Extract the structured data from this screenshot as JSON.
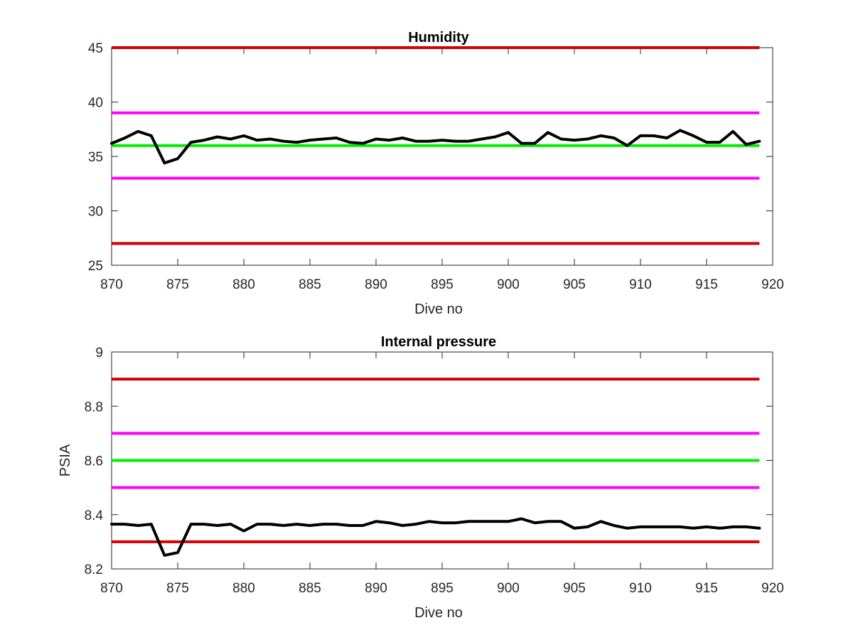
{
  "colors": {
    "red_limit": "#d40000",
    "magenta_limit": "#ff00ff",
    "green_nominal": "#00ee00",
    "data_line": "#000000",
    "axis": "#262626"
  },
  "chart_data": [
    {
      "type": "line",
      "title": "Humidity",
      "xlabel": "Dive no",
      "ylabel": "",
      "xlim": [
        870,
        920
      ],
      "ylim": [
        25,
        45
      ],
      "xticks": [
        870,
        875,
        880,
        885,
        890,
        895,
        900,
        905,
        910,
        915,
        920
      ],
      "yticks": [
        25,
        30,
        35,
        40,
        45
      ],
      "grid": false,
      "reference_lines": [
        {
          "y": 45,
          "color": "red"
        },
        {
          "y": 39,
          "color": "magenta"
        },
        {
          "y": 36,
          "color": "green"
        },
        {
          "y": 33,
          "color": "magenta"
        },
        {
          "y": 27,
          "color": "red"
        }
      ],
      "series": [
        {
          "x": [
            870,
            871,
            872,
            873,
            874,
            875,
            876,
            877,
            878,
            879,
            880,
            881,
            882,
            883,
            884,
            885,
            886,
            887,
            888,
            889,
            890,
            891,
            892,
            893,
            894,
            895,
            896,
            897,
            898,
            899,
            900,
            901,
            902,
            903,
            904,
            905,
            906,
            907,
            908,
            909,
            910,
            911,
            912,
            913,
            914,
            915,
            916,
            917,
            918,
            919
          ],
          "values": [
            36.2,
            36.7,
            37.3,
            36.9,
            34.4,
            34.8,
            36.3,
            36.5,
            36.8,
            36.6,
            36.9,
            36.5,
            36.6,
            36.4,
            36.3,
            36.5,
            36.6,
            36.7,
            36.3,
            36.2,
            36.6,
            36.5,
            36.7,
            36.4,
            36.4,
            36.5,
            36.4,
            36.4,
            36.6,
            36.8,
            37.2,
            36.2,
            36.2,
            37.2,
            36.6,
            36.5,
            36.6,
            36.9,
            36.7,
            36.0,
            36.9,
            36.9,
            36.7,
            37.4,
            36.9,
            36.3,
            36.3,
            37.3,
            36.1,
            36.4
          ]
        }
      ]
    },
    {
      "type": "line",
      "title": "Internal pressure",
      "xlabel": "Dive no",
      "ylabel": "PSIA",
      "xlim": [
        870,
        920
      ],
      "ylim": [
        8.2,
        9.0
      ],
      "xticks": [
        870,
        875,
        880,
        885,
        890,
        895,
        900,
        905,
        910,
        915,
        920
      ],
      "yticks": [
        8.2,
        8.4,
        8.6,
        8.8,
        9
      ],
      "grid": false,
      "reference_lines": [
        {
          "y": 8.9,
          "color": "red"
        },
        {
          "y": 8.7,
          "color": "magenta"
        },
        {
          "y": 8.6,
          "color": "green"
        },
        {
          "y": 8.5,
          "color": "magenta"
        },
        {
          "y": 8.3,
          "color": "red"
        }
      ],
      "series": [
        {
          "x": [
            870,
            871,
            872,
            873,
            874,
            875,
            876,
            877,
            878,
            879,
            880,
            881,
            882,
            883,
            884,
            885,
            886,
            887,
            888,
            889,
            890,
            891,
            892,
            893,
            894,
            895,
            896,
            897,
            898,
            899,
            900,
            901,
            902,
            903,
            904,
            905,
            906,
            907,
            908,
            909,
            910,
            911,
            912,
            913,
            914,
            915,
            916,
            917,
            918,
            919
          ],
          "values": [
            8.365,
            8.365,
            8.36,
            8.365,
            8.25,
            8.26,
            8.365,
            8.365,
            8.36,
            8.365,
            8.34,
            8.365,
            8.365,
            8.36,
            8.365,
            8.36,
            8.365,
            8.365,
            8.36,
            8.36,
            8.375,
            8.37,
            8.36,
            8.365,
            8.375,
            8.37,
            8.37,
            8.375,
            8.375,
            8.375,
            8.375,
            8.385,
            8.37,
            8.375,
            8.375,
            8.35,
            8.355,
            8.375,
            8.36,
            8.35,
            8.355,
            8.355,
            8.355,
            8.355,
            8.35,
            8.355,
            8.35,
            8.355,
            8.355,
            8.35
          ]
        }
      ]
    }
  ]
}
